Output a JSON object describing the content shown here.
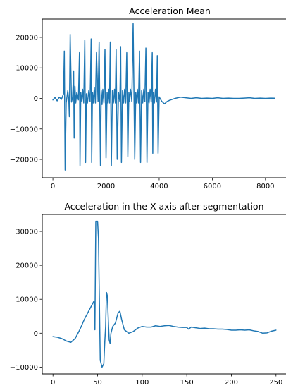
{
  "chart_data": [
    {
      "type": "line",
      "title": "Acceleration Mean",
      "xlabel": "",
      "ylabel": "",
      "xlim": [
        -400,
        8800
      ],
      "ylim": [
        -26000,
        26000
      ],
      "xticks": [
        0,
        2000,
        4000,
        6000,
        8000
      ],
      "yticks": [
        -20000,
        -10000,
        0,
        10000,
        20000
      ],
      "xtick_labels": [
        "0",
        "2000",
        "4000",
        "6000",
        "8000"
      ],
      "ytick_labels": [
        "−20000",
        "−10000",
        "0",
        "10000",
        "20000"
      ],
      "grid": false,
      "color": "#1f77b4",
      "series": [
        {
          "x": [
            0,
            80,
            160,
            240,
            320,
            400,
            430,
            460,
            500,
            560,
            600,
            620,
            650,
            700,
            740,
            780,
            800,
            830,
            860,
            900,
            960,
            1000,
            1020,
            1050,
            1090,
            1120,
            1160,
            1200,
            1230,
            1260,
            1300,
            1350,
            1400,
            1440,
            1460,
            1490,
            1520,
            1560,
            1600,
            1640,
            1700,
            1740,
            1790,
            1820,
            1850,
            1880,
            1920,
            1960,
            2000,
            2040,
            2070,
            2100,
            2130,
            2160,
            2200,
            2240,
            2280,
            2320,
            2350,
            2380,
            2420,
            2470,
            2520,
            2550,
            2580,
            2620,
            2660,
            2700,
            2740,
            2780,
            2820,
            2860,
            2880,
            2920,
            2970,
            3020,
            3080,
            3120,
            3150,
            3180,
            3220,
            3260,
            3300,
            3340,
            3380,
            3420,
            3460,
            3500,
            3540,
            3580,
            3620,
            3660,
            3700,
            3740,
            3760,
            3780,
            3820,
            3860,
            3900,
            3930,
            3960,
            4000,
            4100,
            4200,
            4300,
            4400,
            4600,
            4800,
            5000,
            5200,
            5400,
            5600,
            5800,
            6000,
            6200,
            6400,
            6600,
            6800,
            7000,
            7200,
            7400,
            7600,
            7800,
            8000,
            8200,
            8350
          ],
          "y": [
            -500,
            300,
            -800,
            400,
            -300,
            1500,
            15500,
            -23500,
            -1500,
            2500,
            -800,
            -6000,
            21000,
            -1200,
            300,
            9000,
            -13000,
            4000,
            -1500,
            2000,
            -500,
            15000,
            -22000,
            2000,
            -1000,
            3000,
            -1500,
            19000,
            -21000,
            1500,
            -1500,
            2500,
            -1000,
            19500,
            -21000,
            2000,
            -1500,
            3500,
            -1500,
            15000,
            -1000,
            18500,
            -22000,
            2500,
            -2000,
            3000,
            -1500,
            16000,
            -19500,
            2000,
            -1500,
            3000,
            -1500,
            18500,
            -22000,
            2500,
            -1500,
            3000,
            -1500,
            16000,
            -20000,
            2000,
            -1000,
            17000,
            -21000,
            2500,
            -1500,
            3000,
            -1500,
            15000,
            -19000,
            2000,
            -1000,
            3000,
            -1000,
            24500,
            -20000,
            2000,
            -1500,
            3000,
            -1500,
            15500,
            -21000,
            2500,
            -1500,
            3000,
            -1000,
            16500,
            -21000,
            2000,
            -1500,
            3000,
            -1200,
            15000,
            -18000,
            2000,
            -1500,
            3000,
            -1200,
            14000,
            -18000,
            500,
            -1000,
            -1800,
            -1000,
            -600,
            0,
            400,
            200,
            0,
            200,
            0,
            100,
            0,
            200,
            0,
            100,
            0,
            0,
            100,
            200,
            0,
            100,
            0,
            100,
            50
          ]
        }
      ]
    },
    {
      "type": "line",
      "title": "Acceleration in the X axis after segmentation",
      "xlabel": "",
      "ylabel": "",
      "xlim": [
        -12,
        262
      ],
      "ylim": [
        -12000,
        35000
      ],
      "xticks": [
        0,
        50,
        100,
        150,
        200,
        250
      ],
      "yticks": [
        -10000,
        0,
        10000,
        20000,
        30000
      ],
      "xtick_labels": [
        "0",
        "50",
        "100",
        "150",
        "200",
        "250"
      ],
      "ytick_labels": [
        "−10000",
        "0",
        "10000",
        "20000",
        "30000"
      ],
      "grid": false,
      "color": "#1f77b4",
      "series": [
        {
          "x": [
            0,
            5,
            10,
            15,
            20,
            25,
            30,
            35,
            40,
            44,
            46,
            47,
            48,
            50,
            51,
            52,
            53,
            55,
            57,
            58,
            59,
            60,
            61,
            62,
            63,
            64,
            65,
            67,
            70,
            73,
            75,
            77,
            80,
            85,
            90,
            95,
            100,
            105,
            110,
            115,
            120,
            125,
            130,
            135,
            140,
            145,
            150,
            152,
            155,
            160,
            165,
            170,
            175,
            180,
            185,
            190,
            195,
            200,
            205,
            210,
            215,
            220,
            225,
            230,
            235,
            240,
            245,
            250
          ],
          "y": [
            -1000,
            -1200,
            -1600,
            -2300,
            -2700,
            -1500,
            1000,
            4000,
            6500,
            8500,
            9500,
            1000,
            33000,
            33000,
            28000,
            10000,
            -8000,
            -10000,
            -9000,
            -3000,
            2000,
            12000,
            11000,
            4000,
            -2000,
            -3000,
            0,
            2000,
            3000,
            6000,
            6500,
            4000,
            1000,
            0,
            500,
            1500,
            2000,
            1800,
            1800,
            2200,
            2000,
            2200,
            2300,
            2000,
            1800,
            1700,
            1700,
            1200,
            1800,
            1600,
            1400,
            1500,
            1300,
            1300,
            1200,
            1200,
            1100,
            900,
            900,
            1000,
            900,
            1000,
            700,
            500,
            0,
            100,
            600,
            900
          ]
        }
      ]
    }
  ]
}
